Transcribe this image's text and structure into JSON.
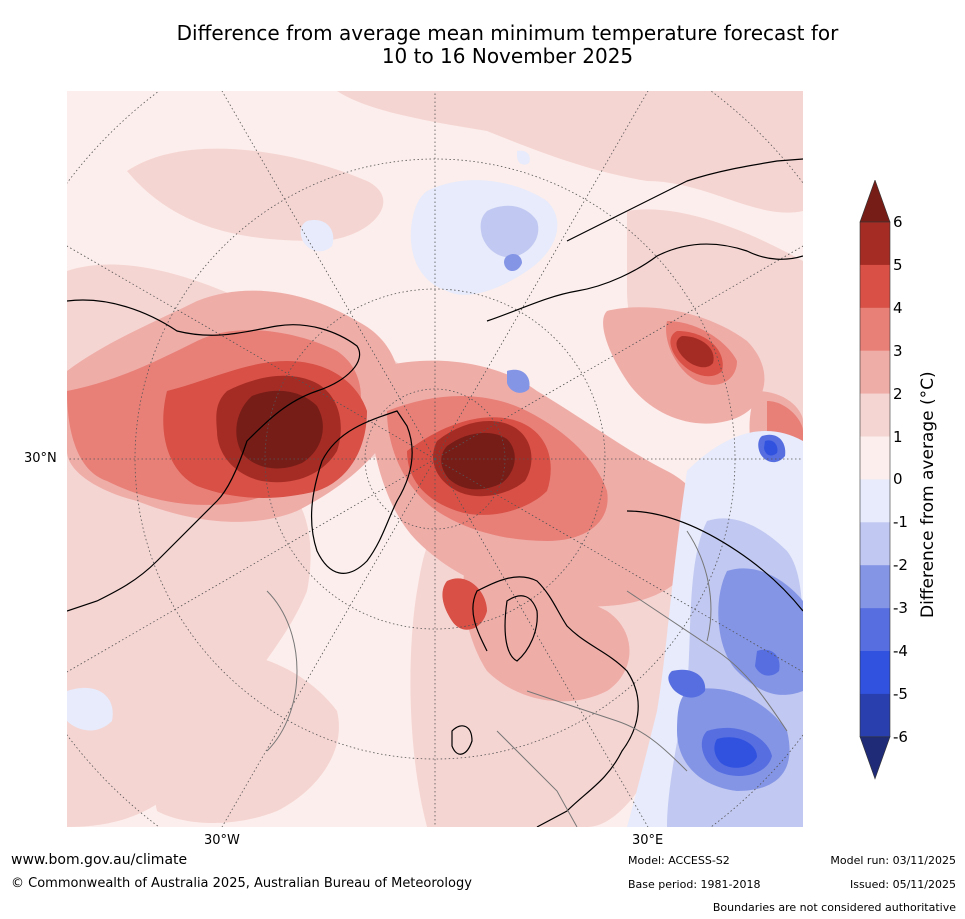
{
  "title": {
    "line1": "Difference from average mean minimum temperature forecast for",
    "line2": "10 to 16 November 2025"
  },
  "map": {
    "projection": "north-polar-stereographic",
    "labels": {
      "lat_30n": "30°N",
      "lon_30w": "30°W",
      "lon_30e": "30°E"
    },
    "features": [
      "coastlines",
      "country-borders",
      "graticule"
    ]
  },
  "colorbar": {
    "label": "Difference from average (°C)",
    "ticks": [
      "6",
      "5",
      "4",
      "3",
      "2",
      "1",
      "0",
      "-1",
      "-2",
      "-3",
      "-4",
      "-5",
      "-6"
    ],
    "colors": [
      "#771d18",
      "#a52c24",
      "#d85046",
      "#e88078",
      "#efada8",
      "#f5d5d2",
      "#fceeec",
      "#e7ebfb",
      "#c1c8f1",
      "#8495e6",
      "#566ee0",
      "#3152df",
      "#283fad",
      "#1f2b76"
    ],
    "extend": "both"
  },
  "footer": {
    "url": "www.bom.gov.au/climate",
    "copyright": "© Commonwealth of Australia 2025, Australian Bureau of Meteorology",
    "model": "Model: ACCESS-S2",
    "base_period": "Base period: 1981-2018",
    "model_run": "Model run: 03/11/2025",
    "issued": "Issued: 05/11/2025",
    "disclaimer": "Boundaries are not considered authoritative"
  }
}
